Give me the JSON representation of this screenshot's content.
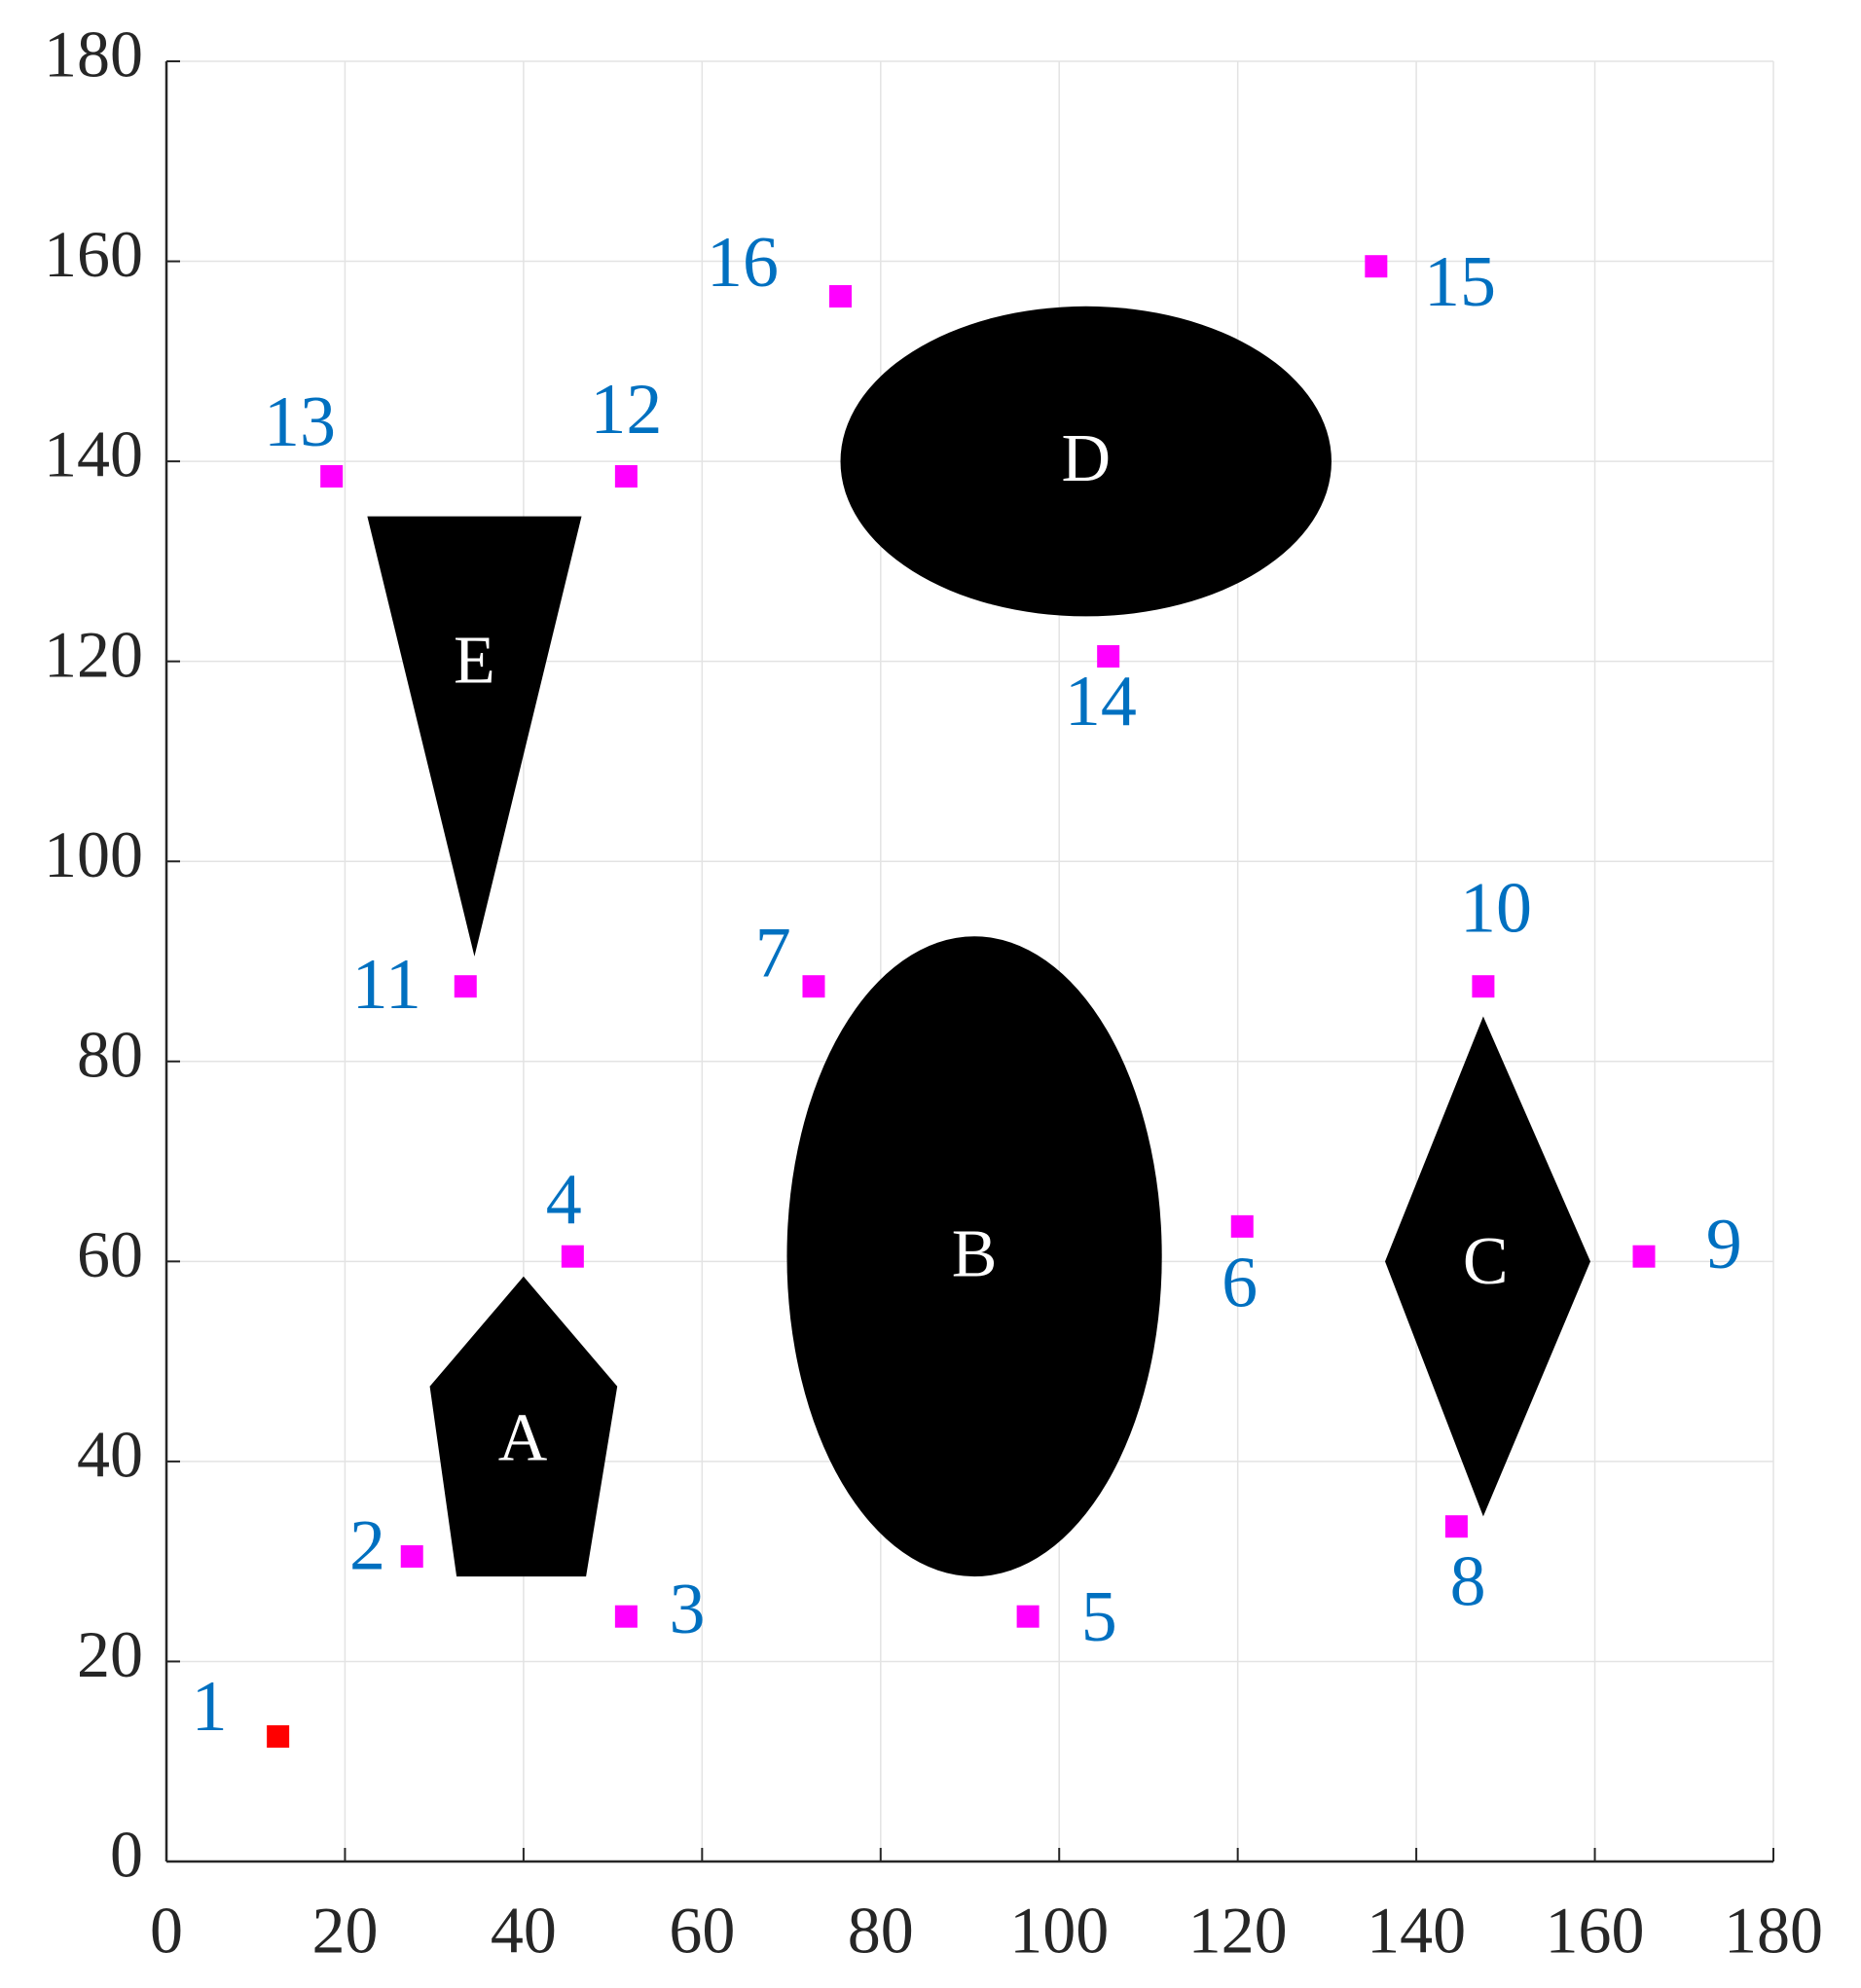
{
  "chart_data": {
    "type": "scatter",
    "xlim": [
      0,
      180
    ],
    "ylim": [
      0,
      180
    ],
    "xticks": [
      0,
      20,
      40,
      60,
      80,
      100,
      120,
      140,
      160,
      180
    ],
    "yticks": [
      0,
      20,
      40,
      60,
      80,
      100,
      120,
      140,
      160,
      180
    ],
    "grid": true,
    "label_color": "#0070c0",
    "series": [
      {
        "color": "#ff0000",
        "x": [
          12.5
        ],
        "y": [
          12.5
        ],
        "labels": [
          "1"
        ]
      },
      {
        "color": "#ff00ff",
        "x": [
          27.5,
          51.5,
          45.5,
          96.5,
          120.5,
          72.5,
          144.5,
          165.5,
          147.5,
          33.5,
          51.5,
          18.5,
          105.5,
          135.5,
          75.5
        ],
        "y": [
          30.5,
          24.5,
          60.5,
          24.5,
          63.5,
          87.5,
          33.5,
          60.5,
          87.5,
          87.5,
          138.5,
          138.5,
          120.5,
          159.5,
          156.5
        ],
        "labels": [
          "2",
          "3",
          "4",
          "5",
          "6",
          "7",
          "8",
          "9",
          "10",
          "11",
          "12",
          "13",
          "14",
          "15",
          "16"
        ]
      }
    ],
    "obstacle_color": "#000000",
    "obstacles": [
      {
        "name": "A",
        "shape": "polygon",
        "points": [
          [
            40,
            58.5
          ],
          [
            50.5,
            47.5
          ],
          [
            47,
            28.5
          ],
          [
            32.5,
            28.5
          ],
          [
            29.5,
            47.5
          ]
        ]
      },
      {
        "name": "B",
        "shape": "ellipse",
        "cx": 90.5,
        "cy": 60.5,
        "rx": 21,
        "ry": 32
      },
      {
        "name": "C",
        "shape": "polygon",
        "points": [
          [
            147.5,
            84.5
          ],
          [
            159.5,
            60
          ],
          [
            147.5,
            34.5
          ],
          [
            136.5,
            60
          ]
        ]
      },
      {
        "name": "D",
        "shape": "ellipse",
        "cx": 103,
        "cy": 140,
        "rx": 27.5,
        "ry": 15.5
      },
      {
        "name": "E",
        "shape": "polygon",
        "points": [
          [
            22.5,
            134.5
          ],
          [
            46.5,
            134.5
          ],
          [
            34.5,
            90.5
          ]
        ]
      }
    ]
  }
}
